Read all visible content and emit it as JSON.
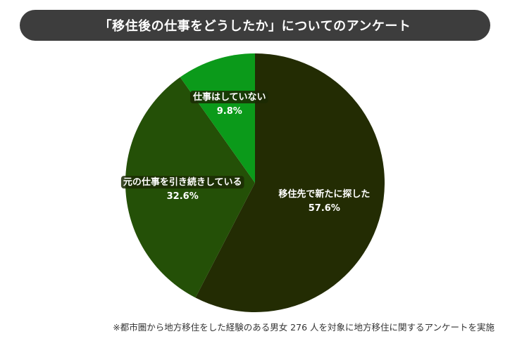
{
  "chart_data": {
    "type": "pie",
    "title": "「移住後の仕事をどうしたか」についてのアンケート",
    "slices": [
      {
        "label": "移住先で新たに探した",
        "value": 57.6,
        "display": "57.6%",
        "color": "#232c03"
      },
      {
        "label": "元の仕事を引き続きしている",
        "value": 32.6,
        "display": "32.6%",
        "color": "#245007"
      },
      {
        "label": "仕事はしていない",
        "value": 9.8,
        "display": "9.8%",
        "color": "#0b9a1a"
      }
    ],
    "start": "top",
    "direction": "clockwise",
    "footnote": "※都市圏から地方移住をした経験のある男女 276 人を対象に地方移住に関するアンケートを実施"
  }
}
